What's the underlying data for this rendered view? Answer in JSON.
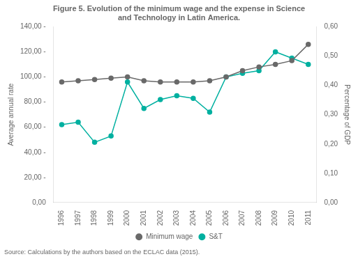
{
  "chart_data": {
    "type": "line",
    "title": "Figure 5. Evolution of the minimum wage and the expense in Science\nand Technology in Latin America.",
    "annotations": [
      "Source: Calculations by the authors based on the ECLAC data (2015)."
    ],
    "x": [
      1996,
      1997,
      1998,
      1999,
      2000,
      2001,
      2002,
      2003,
      2004,
      2005,
      2006,
      2007,
      2008,
      2009,
      2010,
      2011
    ],
    "series": [
      {
        "name": "Minimum wage",
        "color": "#696969",
        "marker": "circle",
        "line_style": "solid",
        "values": [
          96,
          97,
          98,
          99,
          100,
          97,
          96,
          96,
          96,
          97,
          100,
          105,
          108,
          110,
          113,
          126
        ]
      },
      {
        "name": "S&T",
        "color": "#00b0a0",
        "marker": "circle",
        "line_style": "solid",
        "values": [
          62,
          64,
          48,
          53,
          96,
          75,
          82,
          85,
          83,
          72,
          100,
          103,
          105,
          120,
          115,
          110
        ]
      }
    ],
    "ylabel": "Average annual rate",
    "y2label": "Percentage of GDP",
    "xlim": [
      1995.5,
      2011.5
    ],
    "xticks": [
      1996,
      1997,
      1998,
      1999,
      2000,
      2001,
      2002,
      2003,
      2004,
      2005,
      2006,
      2007,
      2008,
      2009,
      2010,
      2011
    ],
    "ylim": [
      0,
      140
    ],
    "yticks": [
      {
        "value": 0,
        "label": "0,00"
      },
      {
        "value": 20,
        "label": "20,00 -"
      },
      {
        "value": 40,
        "label": "40,00 -"
      },
      {
        "value": 60,
        "label": "60,00 -"
      },
      {
        "value": 80,
        "label": "80,00 -"
      },
      {
        "value": 100,
        "label": "100,00 -"
      },
      {
        "value": 120,
        "label": "120,00 -"
      },
      {
        "value": 140,
        "label": "140,00 -"
      }
    ],
    "y2lim": [
      0,
      0.6
    ],
    "y2ticks": [
      {
        "value": 0.0,
        "label": "0,00"
      },
      {
        "value": 0.1,
        "label": "0,10"
      },
      {
        "value": 0.2,
        "label": "0,20"
      },
      {
        "value": 0.3,
        "label": "0,30"
      },
      {
        "value": 0.4,
        "label": "0,40"
      },
      {
        "value": 0.5,
        "label": "0,50"
      },
      {
        "value": 0.6,
        "label": "0,60"
      }
    ],
    "grid": false,
    "legend": "bottom"
  }
}
